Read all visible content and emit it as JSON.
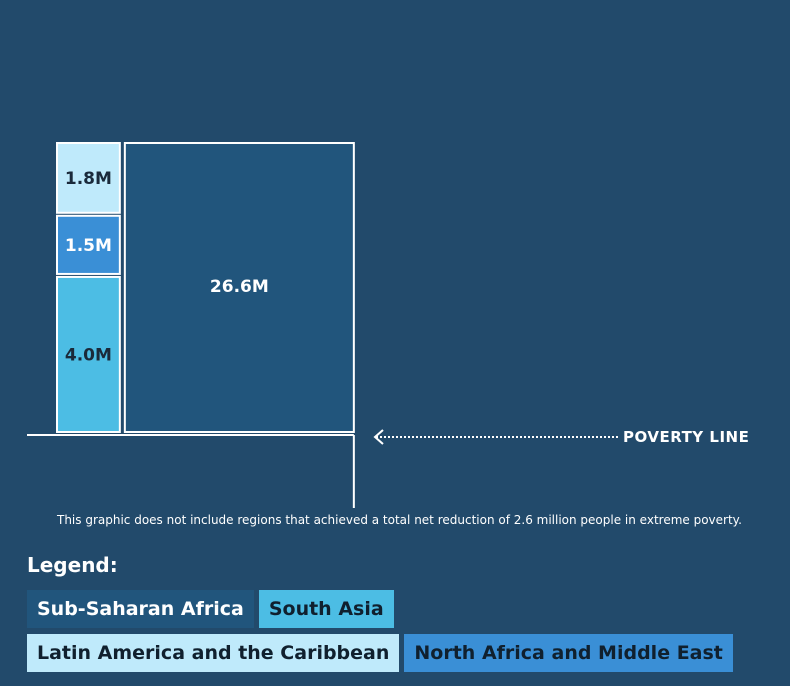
{
  "chart_data": {
    "type": "treemap",
    "unit": "M",
    "series": [
      {
        "name": "Sub-Saharan Africa",
        "value": 26.6,
        "label": "26.6M",
        "color": "#21557c",
        "text_color": "#ffffff"
      },
      {
        "name": "South Asia",
        "value": 4.0,
        "label": "4.0M",
        "color": "#4cbde4",
        "text_color": "#1a2a3a"
      },
      {
        "name": "North Africa and Middle East",
        "value": 1.5,
        "label": "1.5M",
        "color": "#3a8fd6",
        "text_color": "#ffffff"
      },
      {
        "name": "Latin America and the Caribbean",
        "value": 1.8,
        "label": "1.8M",
        "color": "#bfeafb",
        "text_color": "#1a2a3a"
      }
    ],
    "reference_line": {
      "label": "POVERTY LINE"
    }
  },
  "note": "This graphic does not include regions that achieved a total net reduction of 2.6 million people in extreme poverty.",
  "legend": {
    "title": "Legend:",
    "items": [
      {
        "label": "Sub-Saharan Africa",
        "color": "#21557c",
        "text_color": "#ffffff"
      },
      {
        "label": "South Asia",
        "color": "#4cbde4",
        "text_color": "#10202e"
      },
      {
        "label": "Latin America and the Caribbean",
        "color": "#bfeafb",
        "text_color": "#10202e"
      },
      {
        "label": "North Africa and Middle East",
        "color": "#3a8fd6",
        "text_color": "#10202e"
      }
    ]
  },
  "colors": {
    "background": "#224a6b",
    "outline": "#ffffff"
  }
}
